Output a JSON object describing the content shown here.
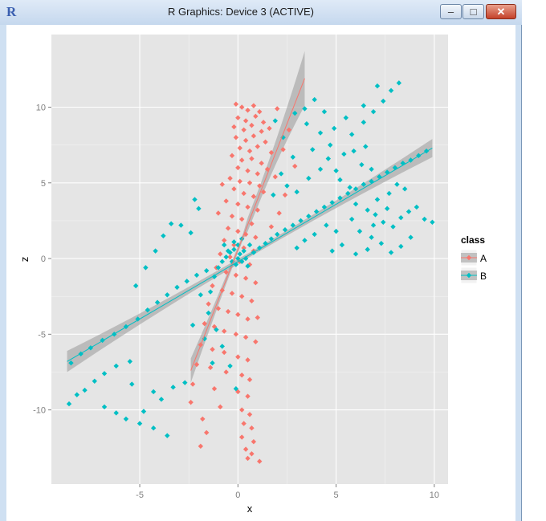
{
  "window": {
    "title": "R Graphics: Device 3 (ACTIVE)",
    "app_icon_letter": "R",
    "minimize_glyph": "–",
    "maximize_glyph": "□",
    "close_glyph": "✕"
  },
  "chart_data": {
    "type": "scatter",
    "xlabel": "x",
    "ylabel": "z",
    "xlim": [
      -9.5,
      10.7
    ],
    "ylim": [
      -14.9,
      14.8
    ],
    "x_ticks": [
      -5,
      0,
      5,
      10
    ],
    "y_ticks": [
      -10,
      -5,
      0,
      5,
      10
    ],
    "grid": true,
    "legend": {
      "title": "class",
      "position": "right",
      "entries": [
        "A",
        "B"
      ]
    },
    "series": [
      {
        "name": "A",
        "color": "#F8766D",
        "trend": {
          "x": [
            -2.4,
            3.4
          ],
          "y": [
            -7.4,
            11.9
          ]
        },
        "band_halfwidth": [
          0.8,
          1.8
        ],
        "points": [
          [
            -0.1,
            10.2
          ],
          [
            0.2,
            10.0
          ],
          [
            0.5,
            9.8
          ],
          [
            0.8,
            10.1
          ],
          [
            1.1,
            9.7
          ],
          [
            0.0,
            9.3
          ],
          [
            0.4,
            9.1
          ],
          [
            0.9,
            9.4
          ],
          [
            1.3,
            9.0
          ],
          [
            -0.2,
            8.7
          ],
          [
            0.3,
            8.5
          ],
          [
            0.7,
            8.8
          ],
          [
            1.2,
            8.4
          ],
          [
            1.6,
            8.6
          ],
          [
            -0.1,
            8.0
          ],
          [
            0.4,
            7.8
          ],
          [
            0.8,
            8.1
          ],
          [
            1.4,
            7.7
          ],
          [
            0.1,
            7.3
          ],
          [
            0.6,
            7.1
          ],
          [
            1.0,
            7.4
          ],
          [
            1.7,
            7.0
          ],
          [
            -0.3,
            6.8
          ],
          [
            0.2,
            6.5
          ],
          [
            0.7,
            6.6
          ],
          [
            1.2,
            6.3
          ],
          [
            0.0,
            6.0
          ],
          [
            0.5,
            5.8
          ],
          [
            1.0,
            5.6
          ],
          [
            1.5,
            5.9
          ],
          [
            -0.4,
            5.3
          ],
          [
            0.1,
            5.1
          ],
          [
            0.6,
            5.0
          ],
          [
            1.1,
            4.8
          ],
          [
            -0.2,
            4.6
          ],
          [
            0.3,
            4.3
          ],
          [
            0.8,
            4.1
          ],
          [
            1.3,
            4.4
          ],
          [
            -0.8,
            4.9
          ],
          [
            -0.6,
            3.8
          ],
          [
            0.0,
            3.6
          ],
          [
            0.5,
            3.4
          ],
          [
            1.0,
            3.2
          ],
          [
            -1.0,
            3.0
          ],
          [
            -0.3,
            2.8
          ],
          [
            0.2,
            2.6
          ],
          [
            0.7,
            2.3
          ],
          [
            -0.5,
            2.0
          ],
          [
            0.0,
            1.8
          ],
          [
            0.4,
            1.6
          ],
          [
            0.9,
            1.4
          ],
          [
            -0.7,
            1.2
          ],
          [
            -0.2,
            0.9
          ],
          [
            0.3,
            0.7
          ],
          [
            0.8,
            0.5
          ],
          [
            -0.9,
            0.3
          ],
          [
            -0.4,
            0.1
          ],
          [
            0.1,
            -0.2
          ],
          [
            0.6,
            -0.4
          ],
          [
            -1.1,
            -0.6
          ],
          [
            -0.6,
            -0.9
          ],
          [
            -0.1,
            -1.1
          ],
          [
            0.4,
            -1.3
          ],
          [
            0.9,
            -1.6
          ],
          [
            -1.3,
            -1.8
          ],
          [
            -0.8,
            -2.1
          ],
          [
            -0.3,
            -2.3
          ],
          [
            0.2,
            -2.5
          ],
          [
            0.7,
            -2.8
          ],
          [
            -1.5,
            -3.0
          ],
          [
            -1.0,
            -3.3
          ],
          [
            -0.5,
            -3.5
          ],
          [
            0.0,
            -3.7
          ],
          [
            0.5,
            -4.0
          ],
          [
            1.0,
            -3.9
          ],
          [
            -1.7,
            -4.3
          ],
          [
            -1.2,
            -4.5
          ],
          [
            -0.7,
            -4.8
          ],
          [
            -0.1,
            -5.0
          ],
          [
            0.4,
            -5.2
          ],
          [
            0.9,
            -5.5
          ],
          [
            -1.9,
            -5.7
          ],
          [
            -1.3,
            -6.0
          ],
          [
            -0.7,
            -6.2
          ],
          [
            0.0,
            -6.5
          ],
          [
            0.5,
            -6.7
          ],
          [
            -2.1,
            -7.0
          ],
          [
            -1.4,
            -7.2
          ],
          [
            -0.6,
            -7.5
          ],
          [
            0.2,
            -7.7
          ],
          [
            0.6,
            -8.0
          ],
          [
            -2.3,
            -8.3
          ],
          [
            -1.2,
            -8.6
          ],
          [
            0.0,
            -8.8
          ],
          [
            0.5,
            -9.1
          ],
          [
            -2.4,
            -9.5
          ],
          [
            -0.9,
            -9.8
          ],
          [
            0.2,
            -10.0
          ],
          [
            0.6,
            -10.3
          ],
          [
            -1.8,
            -10.6
          ],
          [
            0.3,
            -10.9
          ],
          [
            0.7,
            -11.2
          ],
          [
            -1.6,
            -11.5
          ],
          [
            0.2,
            -11.8
          ],
          [
            0.8,
            -12.1
          ],
          [
            -1.9,
            -12.4
          ],
          [
            0.4,
            -12.6
          ],
          [
            0.7,
            -12.9
          ],
          [
            0.5,
            -13.2
          ],
          [
            1.1,
            -13.4
          ],
          [
            2.0,
            9.9
          ],
          [
            2.6,
            8.5
          ],
          [
            2.3,
            7.2
          ],
          [
            2.9,
            6.1
          ],
          [
            1.9,
            5.4
          ],
          [
            2.4,
            4.2
          ],
          [
            2.1,
            3.0
          ],
          [
            1.7,
            2.1
          ]
        ]
      },
      {
        "name": "B",
        "color": "#00BFC4",
        "trend": {
          "x": [
            -8.7,
            9.9
          ],
          "y": [
            -6.8,
            7.3
          ]
        },
        "band_halfwidth": [
          0.7,
          0.6
        ],
        "points": [
          [
            -8.6,
            -9.6
          ],
          [
            -8.2,
            -9.0
          ],
          [
            -7.8,
            -8.7
          ],
          [
            -7.3,
            -8.1
          ],
          [
            -6.8,
            -7.6
          ],
          [
            -6.2,
            -7.1
          ],
          [
            -5.5,
            -6.8
          ],
          [
            -8.5,
            -6.9
          ],
          [
            -8.0,
            -6.3
          ],
          [
            -7.5,
            -5.9
          ],
          [
            -6.9,
            -5.4
          ],
          [
            -6.3,
            -5.0
          ],
          [
            -5.7,
            -4.5
          ],
          [
            -5.1,
            -4.0
          ],
          [
            -4.6,
            -3.4
          ],
          [
            -4.1,
            -2.9
          ],
          [
            -3.6,
            -2.4
          ],
          [
            -3.1,
            -1.9
          ],
          [
            -2.6,
            -1.5
          ],
          [
            -2.1,
            -1.1
          ],
          [
            -1.6,
            -0.8
          ],
          [
            -6.8,
            -9.8
          ],
          [
            -6.2,
            -10.2
          ],
          [
            -5.7,
            -10.6
          ],
          [
            -5.0,
            -10.9
          ],
          [
            -4.3,
            -11.2
          ],
          [
            -3.6,
            -11.7
          ],
          [
            -4.8,
            -10.1
          ],
          [
            -5.4,
            -8.3
          ],
          [
            -4.3,
            -8.8
          ],
          [
            -3.9,
            -9.3
          ],
          [
            -3.3,
            -8.5
          ],
          [
            -2.7,
            -8.2
          ],
          [
            -5.2,
            -1.8
          ],
          [
            -4.7,
            -0.6
          ],
          [
            -4.2,
            0.5
          ],
          [
            -3.8,
            1.5
          ],
          [
            -3.4,
            2.3
          ],
          [
            -2.9,
            2.2
          ],
          [
            -2.4,
            1.7
          ],
          [
            -2.0,
            3.3
          ],
          [
            -2.2,
            3.9
          ],
          [
            -1.9,
            -2.4
          ],
          [
            -1.5,
            -3.6
          ],
          [
            -1.1,
            -4.7
          ],
          [
            -0.8,
            -5.8
          ],
          [
            -0.4,
            -7.1
          ],
          [
            -0.1,
            -8.6
          ],
          [
            -1.3,
            -6.9
          ],
          [
            -2.3,
            -4.4
          ],
          [
            -1.7,
            -5.3
          ],
          [
            -1.4,
            -2.2
          ],
          [
            -1.2,
            -1.2
          ],
          [
            -1.0,
            -0.6
          ],
          [
            -0.8,
            -0.2
          ],
          [
            -0.6,
            0.1
          ],
          [
            -0.4,
            0.4
          ],
          [
            -0.2,
            0.6
          ],
          [
            0.0,
            0.0
          ],
          [
            0.2,
            -0.2
          ],
          [
            0.3,
            0.5
          ],
          [
            -0.1,
            -0.4
          ],
          [
            0.1,
            0.3
          ],
          [
            -0.3,
            -0.2
          ],
          [
            0.4,
            0.0
          ],
          [
            -0.5,
            0.5
          ],
          [
            0.5,
            -0.5
          ],
          [
            0.0,
            0.9
          ],
          [
            -0.2,
            1.1
          ],
          [
            0.2,
            1.3
          ],
          [
            0.6,
            0.9
          ],
          [
            -0.7,
            0.9
          ],
          [
            0.8,
            0.4
          ],
          [
            1.1,
            0.7
          ],
          [
            1.4,
            1.0
          ],
          [
            1.7,
            1.3
          ],
          [
            2.0,
            1.6
          ],
          [
            2.4,
            1.9
          ],
          [
            2.8,
            2.2
          ],
          [
            3.2,
            2.5
          ],
          [
            3.6,
            2.8
          ],
          [
            4.0,
            3.1
          ],
          [
            4.4,
            3.4
          ],
          [
            4.8,
            3.7
          ],
          [
            5.2,
            4.0
          ],
          [
            5.6,
            4.3
          ],
          [
            6.0,
            4.6
          ],
          [
            6.4,
            4.9
          ],
          [
            6.8,
            5.1
          ],
          [
            7.2,
            5.4
          ],
          [
            7.6,
            5.7
          ],
          [
            8.0,
            6.0
          ],
          [
            8.4,
            6.3
          ],
          [
            8.8,
            6.5
          ],
          [
            9.2,
            6.8
          ],
          [
            9.6,
            7.1
          ],
          [
            1.8,
            4.2
          ],
          [
            2.5,
            4.8
          ],
          [
            3.0,
            4.4
          ],
          [
            2.2,
            5.6
          ],
          [
            2.8,
            6.7
          ],
          [
            2.3,
            8.0
          ],
          [
            1.9,
            9.1
          ],
          [
            2.9,
            9.6
          ],
          [
            3.5,
            8.9
          ],
          [
            4.2,
            8.3
          ],
          [
            3.8,
            7.2
          ],
          [
            4.6,
            6.6
          ],
          [
            5.0,
            5.8
          ],
          [
            5.4,
            6.9
          ],
          [
            4.7,
            7.5
          ],
          [
            5.9,
            7.1
          ],
          [
            6.3,
            6.2
          ],
          [
            6.8,
            5.9
          ],
          [
            6.5,
            7.4
          ],
          [
            5.2,
            5.2
          ],
          [
            5.7,
            4.7
          ],
          [
            6.0,
            3.6
          ],
          [
            6.6,
            3.2
          ],
          [
            7.0,
            2.9
          ],
          [
            7.4,
            2.4
          ],
          [
            7.9,
            2.1
          ],
          [
            8.3,
            2.7
          ],
          [
            8.7,
            3.1
          ],
          [
            9.1,
            3.4
          ],
          [
            9.5,
            2.6
          ],
          [
            9.9,
            2.4
          ],
          [
            8.8,
            1.4
          ],
          [
            8.3,
            0.8
          ],
          [
            7.8,
            0.4
          ],
          [
            7.3,
            1.0
          ],
          [
            6.6,
            0.6
          ],
          [
            6.0,
            0.3
          ],
          [
            5.3,
            0.9
          ],
          [
            4.8,
            0.5
          ],
          [
            5.0,
            1.8
          ],
          [
            4.5,
            2.2
          ],
          [
            3.9,
            1.6
          ],
          [
            3.4,
            1.2
          ],
          [
            3.0,
            0.7
          ],
          [
            6.2,
            1.8
          ],
          [
            6.8,
            1.4
          ],
          [
            7.1,
            3.9
          ],
          [
            7.7,
            4.3
          ],
          [
            8.1,
            4.9
          ],
          [
            5.8,
            8.2
          ],
          [
            6.4,
            9.0
          ],
          [
            6.9,
            9.7
          ],
          [
            7.4,
            10.4
          ],
          [
            7.8,
            11.1
          ],
          [
            8.2,
            11.6
          ],
          [
            7.1,
            11.4
          ],
          [
            6.4,
            10.1
          ],
          [
            5.5,
            9.3
          ],
          [
            4.9,
            8.6
          ],
          [
            4.4,
            9.7
          ],
          [
            3.9,
            10.5
          ],
          [
            3.4,
            9.9
          ],
          [
            5.8,
            2.6
          ],
          [
            6.9,
            2.2
          ],
          [
            7.6,
            3.3
          ],
          [
            8.5,
            4.6
          ],
          [
            4.2,
            5.9
          ],
          [
            3.6,
            5.3
          ]
        ]
      }
    ]
  }
}
